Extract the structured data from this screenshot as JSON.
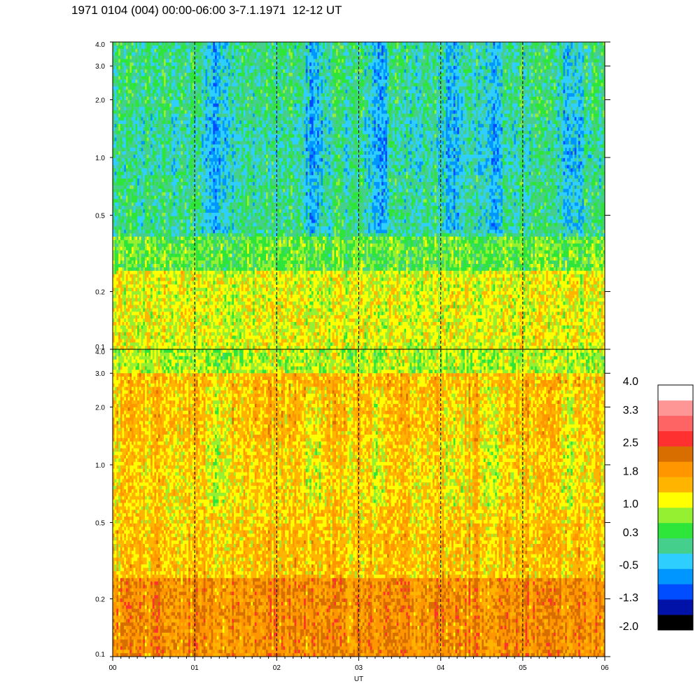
{
  "title": "1971 0104 (004) 00:00-06:00 3-7.1.1971  12-12 UT",
  "chart_data": {
    "type": "heatmap",
    "title": "1971 0104 (004) 00:00-06:00 3-7.1.1971  12-12 UT",
    "xlabel": "UT",
    "ylabel": "",
    "x_ticks": [
      "00",
      "01",
      "02",
      "03",
      "04",
      "05",
      "06"
    ],
    "xlim": [
      0,
      6
    ],
    "y_scale": "log",
    "ylim": [
      0.1,
      4.0
    ],
    "y_ticks": [
      "0.1",
      "0.2",
      "0.5",
      "1.0",
      "2.0",
      "3.0",
      "4.0"
    ],
    "y_tick_values": [
      0.1,
      0.2,
      0.5,
      1.0,
      2.0,
      3.0,
      4.0
    ],
    "vertical_dashed_lines_at_UT": [
      1,
      2,
      3,
      4,
      5
    ],
    "panels": [
      {
        "position": "top",
        "dominant_levels": "mostly -0.5 to 1.0; low-frequency band 0.3 to 1.0"
      },
      {
        "position": "bottom",
        "dominant_levels": "mostly 1.0 to 2.5; low-frequency band 1.8 to 2.5"
      }
    ],
    "colorbar": {
      "levels": [
        "#000000",
        "#0012a8",
        "#004cff",
        "#0096ff",
        "#2ecfff",
        "#44d08c",
        "#2ee63a",
        "#96f032",
        "#ffff00",
        "#ffb400",
        "#ff9600",
        "#d86e00",
        "#ff3030",
        "#ff6464",
        "#ff9696",
        "#ffffff"
      ],
      "tick_labels": [
        "4.0",
        "3.3",
        "2.5",
        "1.8",
        "1.0",
        "0.3",
        "-0.5",
        "-1.3",
        "-2.0"
      ],
      "tick_values": [
        4.0,
        3.3,
        2.5,
        1.8,
        1.0,
        0.3,
        -0.5,
        -1.3,
        -2.0
      ]
    }
  }
}
